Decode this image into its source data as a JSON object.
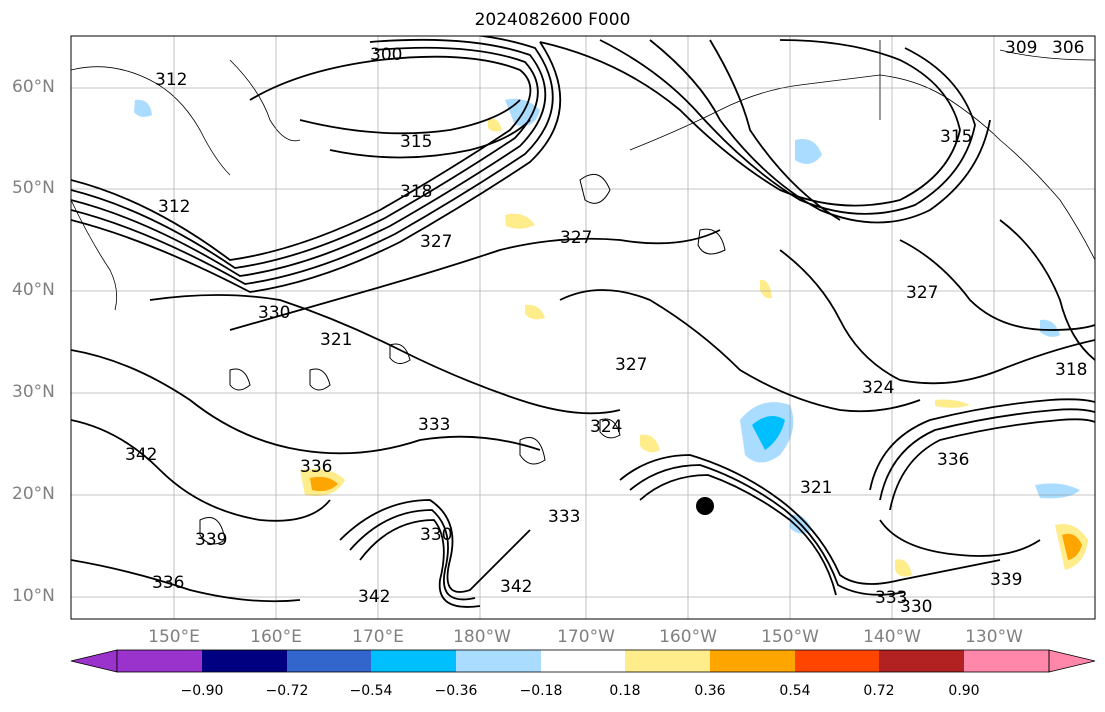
{
  "title": "2024082600 F000",
  "y_axis_labels": [
    "60°N",
    "50°N",
    "40°N",
    "30°N",
    "20°N",
    "10°N"
  ],
  "x_axis_labels": [
    "150°E",
    "160°E",
    "170°E",
    "180°W",
    "170°W",
    "160°W",
    "150°W",
    "140°W",
    "130°W"
  ],
  "contour_labels": [
    "300",
    "312",
    "315",
    "318",
    "312",
    "327",
    "330",
    "333",
    "336",
    "339",
    "342",
    "309",
    "306",
    "321",
    "324",
    "327",
    "318",
    "315",
    "321",
    "324",
    "327",
    "333",
    "336",
    "330",
    "342",
    "339",
    "336",
    "342",
    "333",
    "330",
    "327"
  ],
  "colorbar": {
    "colors": [
      "#9933cc",
      "#000080",
      "#3366cc",
      "#00bfff",
      "#aadcff",
      "#ffffff",
      "#ffec8b",
      "#ffa500",
      "#ff4500",
      "#b22222",
      "#ff88aa"
    ],
    "ticks": [
      "−0.90",
      "−0.72",
      "−0.54",
      "−0.36",
      "−0.18",
      "0.18",
      "0.36",
      "0.54",
      "0.72",
      "0.90"
    ]
  }
}
